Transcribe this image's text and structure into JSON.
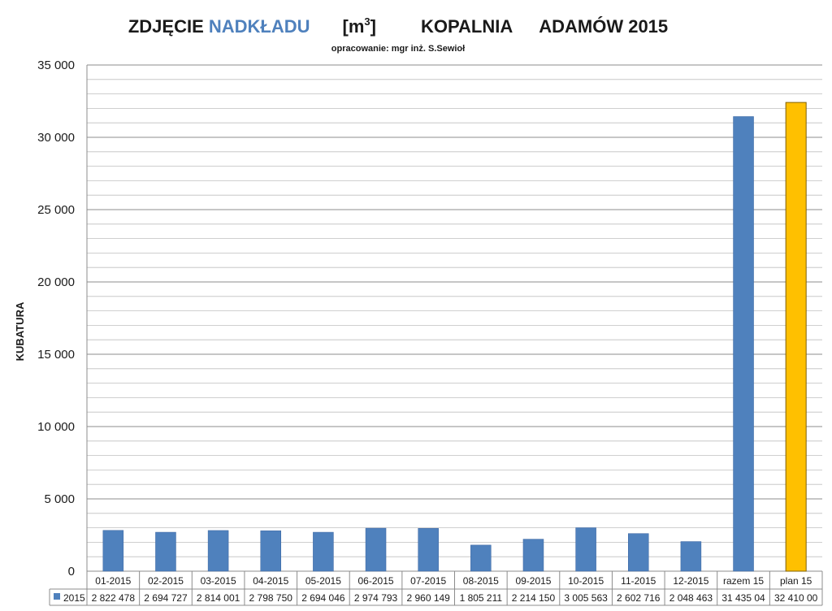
{
  "header": {
    "title_part1": "ZDJĘCIE ",
    "title_highlight": "NADKŁADU",
    "title_unit_base": "[m",
    "title_unit_sup": "3",
    "title_unit_close": "]",
    "title_part2": "KOPALNIA",
    "title_part3": "ADAMÓW 2015",
    "subtitle": "opracowanie: mgr inż. S.Sewioł"
  },
  "colors": {
    "highlight": "#4f81bd",
    "bar": "#4f81bd",
    "bar_plan": "#ffc000",
    "grid_major": "#8c8c8c",
    "grid_minor": "#bfbfbf"
  },
  "chart_data": {
    "type": "bar",
    "ylabel": "KUBATURA",
    "ylim": [
      0,
      35000
    ],
    "y_major_step": 5000,
    "y_minor_step": 1000,
    "y_tick_labels": [
      "0",
      "5 000",
      "10 000",
      "15 000",
      "20 000",
      "25 000",
      "30 000",
      "35 000"
    ],
    "categories": [
      "01-2015",
      "02-2015",
      "03-2015",
      "04-2015",
      "05-2015",
      "06-2015",
      "07-2015",
      "08-2015",
      "09-2015",
      "10-2015",
      "11-2015",
      "12-2015",
      "razem 15",
      "plan 15"
    ],
    "series": [
      {
        "name": "2015",
        "values": [
          2822.478,
          2694.727,
          2814.001,
          2798.75,
          2694.046,
          2974.793,
          2960.149,
          1805.211,
          2214.15,
          3005.563,
          2602.716,
          2048.463,
          31435.04,
          32410.0
        ],
        "table_labels": [
          "2 822 478",
          "2 694 727",
          "2 814 001",
          "2 798 750",
          "2 694 046",
          "2 974 793",
          "2 960 149",
          "1 805 211",
          "2 214 150",
          "3 005 563",
          "2 602 716",
          "2 048 463",
          "31 435 04",
          "32 410 00"
        ]
      }
    ],
    "highlighted_categories": [
      "plan 15"
    ],
    "grid": true,
    "legend": "data-table"
  }
}
